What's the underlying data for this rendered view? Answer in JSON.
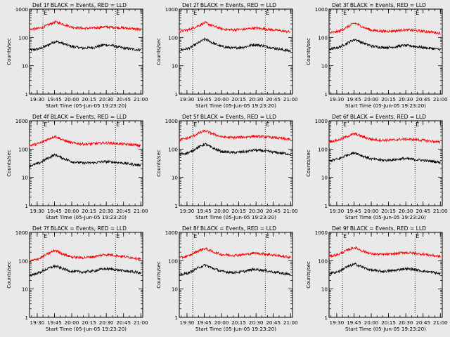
{
  "figure": {
    "background_color": "#e9e9e9",
    "axis_color": "#000000"
  },
  "chart_data": [
    {
      "type": "line",
      "title": "Det 1f BLACK = Events, RED = LLD",
      "xlabel": "Start Time (05-Jun-05 19:23:20)",
      "ylabel": "Counts/sec",
      "yscale": "log",
      "ylim": [
        1,
        1000
      ],
      "yticks": [
        "1",
        "10",
        "100",
        "1000"
      ],
      "xlim": [
        "19:23:20",
        "21:01:40"
      ],
      "xticks": [
        "19:30",
        "19:45",
        "20:00",
        "20:15",
        "20:30",
        "20:45",
        "21:00"
      ],
      "vlines": [
        "19:35",
        "20:38"
      ],
      "vline_marks": [
        "E",
        "E"
      ],
      "series": [
        {
          "name": "Events",
          "color": "#000000",
          "x": [
            "19:23",
            "19:32",
            "19:38",
            "19:44",
            "19:46",
            "19:52",
            "20:00",
            "20:10",
            "20:20",
            "20:28",
            "20:35",
            "20:45",
            "20:55",
            "21:00"
          ],
          "values": [
            35,
            40,
            50,
            68,
            72,
            62,
            48,
            42,
            45,
            55,
            52,
            42,
            38,
            36
          ]
        },
        {
          "name": "LLD",
          "color": "#ff0000",
          "x": [
            "19:23",
            "19:32",
            "19:38",
            "19:44",
            "19:46",
            "19:52",
            "20:00",
            "20:10",
            "20:20",
            "20:28",
            "20:35",
            "20:45",
            "20:55",
            "21:00"
          ],
          "values": [
            190,
            210,
            260,
            330,
            350,
            300,
            230,
            210,
            215,
            235,
            230,
            215,
            200,
            185
          ]
        }
      ]
    },
    {
      "type": "line",
      "title": "Det 2f BLACK = Events, RED = LLD",
      "xlabel": "Start Time (05-Jun-05 19:23:20)",
      "ylabel": "Counts/sec",
      "yscale": "log",
      "ylim": [
        1,
        1000
      ],
      "yticks": [
        "1",
        "10",
        "100",
        "1000"
      ],
      "xlim": [
        "19:23:20",
        "21:01:40"
      ],
      "xticks": [
        "19:30",
        "19:45",
        "20:00",
        "20:15",
        "20:30",
        "20:45",
        "21:00"
      ],
      "vlines": [
        "19:35",
        "20:38"
      ],
      "vline_marks": [
        "E",
        "E"
      ],
      "series": [
        {
          "name": "Events",
          "color": "#000000",
          "x": [
            "19:23",
            "19:32",
            "19:38",
            "19:44",
            "19:46",
            "19:52",
            "20:00",
            "20:10",
            "20:20",
            "20:28",
            "20:35",
            "20:45",
            "20:55",
            "21:00"
          ],
          "values": [
            35,
            42,
            58,
            80,
            88,
            65,
            48,
            42,
            46,
            56,
            52,
            42,
            36,
            33
          ]
        },
        {
          "name": "LLD",
          "color": "#ff0000",
          "x": [
            "19:23",
            "19:32",
            "19:38",
            "19:44",
            "19:46",
            "19:52",
            "20:00",
            "20:10",
            "20:20",
            "20:28",
            "20:35",
            "20:45",
            "20:55",
            "21:00"
          ],
          "values": [
            160,
            190,
            240,
            310,
            330,
            260,
            200,
            185,
            195,
            215,
            205,
            185,
            165,
            155
          ]
        }
      ]
    },
    {
      "type": "line",
      "title": "Det 3f BLACK = Events, RED = LLD",
      "xlabel": "Start Time (05-Jun-05 19:23:20)",
      "ylabel": "Counts/sec",
      "yscale": "log",
      "ylim": [
        1,
        1000
      ],
      "yticks": [
        "1",
        "10",
        "100",
        "1000"
      ],
      "xlim": [
        "19:23:20",
        "21:01:40"
      ],
      "xticks": [
        "19:30",
        "19:45",
        "20:00",
        "20:15",
        "20:30",
        "20:45",
        "21:00"
      ],
      "vlines": [
        "19:35",
        "20:38"
      ],
      "vline_marks": [
        "E",
        "E"
      ],
      "series": [
        {
          "name": "Events",
          "color": "#000000",
          "x": [
            "19:23",
            "19:32",
            "19:38",
            "19:44",
            "19:46",
            "19:52",
            "20:00",
            "20:10",
            "20:20",
            "20:28",
            "20:35",
            "20:45",
            "20:55",
            "21:00"
          ],
          "values": [
            38,
            45,
            60,
            80,
            85,
            66,
            50,
            44,
            46,
            52,
            50,
            44,
            40,
            38
          ]
        },
        {
          "name": "LLD",
          "color": "#ff0000",
          "x": [
            "19:23",
            "19:32",
            "19:38",
            "19:44",
            "19:46",
            "19:52",
            "20:00",
            "20:10",
            "20:20",
            "20:28",
            "20:35",
            "20:45",
            "20:55",
            "21:00"
          ],
          "values": [
            140,
            165,
            220,
            300,
            320,
            240,
            180,
            165,
            170,
            185,
            180,
            165,
            150,
            140
          ]
        }
      ]
    },
    {
      "type": "line",
      "title": "Det 4f BLACK = Events, RED = LLD",
      "xlabel": "Start Time (05-Jun-05 19:23:20)",
      "ylabel": "Counts/sec",
      "yscale": "log",
      "ylim": [
        1,
        1000
      ],
      "yticks": [
        "1",
        "10",
        "100",
        "1000"
      ],
      "xlim": [
        "19:23:20",
        "21:01:40"
      ],
      "xticks": [
        "19:30",
        "19:45",
        "20:00",
        "20:15",
        "20:30",
        "20:45",
        "21:00"
      ],
      "vlines": [
        "19:35",
        "20:38"
      ],
      "vline_marks": [
        "E",
        "E"
      ],
      "series": [
        {
          "name": "Events",
          "color": "#000000",
          "x": [
            "19:23",
            "19:32",
            "19:38",
            "19:44",
            "19:46",
            "19:52",
            "20:00",
            "20:10",
            "20:20",
            "20:28",
            "20:35",
            "20:45",
            "20:55",
            "21:00"
          ],
          "values": [
            25,
            32,
            45,
            60,
            62,
            48,
            36,
            32,
            33,
            36,
            35,
            32,
            28,
            27
          ]
        },
        {
          "name": "LLD",
          "color": "#ff0000",
          "x": [
            "19:23",
            "19:32",
            "19:38",
            "19:44",
            "19:46",
            "19:52",
            "20:00",
            "20:10",
            "20:20",
            "20:28",
            "20:35",
            "20:45",
            "20:55",
            "21:00"
          ],
          "values": [
            130,
            160,
            210,
            270,
            280,
            210,
            165,
            150,
            155,
            165,
            160,
            150,
            140,
            130
          ]
        }
      ]
    },
    {
      "type": "line",
      "title": "Det 5f BLACK = Events, RED = LLD",
      "xlabel": "Start Time (05-Jun-05 19:23:20)",
      "ylabel": "Counts/sec",
      "yscale": "log",
      "ylim": [
        1,
        1000
      ],
      "yticks": [
        "1",
        "10",
        "100",
        "1000"
      ],
      "xlim": [
        "19:23:20",
        "21:01:40"
      ],
      "xticks": [
        "19:30",
        "19:45",
        "20:00",
        "20:15",
        "20:30",
        "20:45",
        "21:00"
      ],
      "vlines": [
        "19:35",
        "20:38"
      ],
      "vline_marks": [
        "E",
        "E"
      ],
      "series": [
        {
          "name": "Events",
          "color": "#000000",
          "x": [
            "19:23",
            "19:32",
            "19:38",
            "19:44",
            "19:46",
            "19:52",
            "20:00",
            "20:10",
            "20:20",
            "20:28",
            "20:35",
            "20:45",
            "20:55",
            "21:00"
          ],
          "values": [
            65,
            75,
            105,
            140,
            150,
            110,
            82,
            75,
            80,
            92,
            88,
            78,
            70,
            65
          ]
        },
        {
          "name": "LLD",
          "color": "#ff0000",
          "x": [
            "19:23",
            "19:32",
            "19:38",
            "19:44",
            "19:46",
            "19:52",
            "20:00",
            "20:10",
            "20:20",
            "20:28",
            "20:35",
            "20:45",
            "20:55",
            "21:00"
          ],
          "values": [
            210,
            250,
            330,
            420,
            440,
            350,
            270,
            255,
            265,
            285,
            275,
            255,
            230,
            215
          ]
        }
      ]
    },
    {
      "type": "line",
      "title": "Det 6f BLACK = Events, RED = LLD",
      "xlabel": "Start Time (05-Jun-05 19:23:20)",
      "ylabel": "Counts/sec",
      "yscale": "log",
      "ylim": [
        1,
        1000
      ],
      "yticks": [
        "1",
        "10",
        "100",
        "1000"
      ],
      "xlim": [
        "19:23:20",
        "21:01:40"
      ],
      "xticks": [
        "19:30",
        "19:45",
        "20:00",
        "20:15",
        "20:30",
        "20:45",
        "21:00"
      ],
      "vlines": [
        "19:35",
        "20:38"
      ],
      "vline_marks": [
        "E",
        "E"
      ],
      "series": [
        {
          "name": "Events",
          "color": "#000000",
          "x": [
            "19:23",
            "19:32",
            "19:38",
            "19:44",
            "19:46",
            "19:52",
            "20:00",
            "20:10",
            "20:20",
            "20:28",
            "20:35",
            "20:45",
            "20:55",
            "21:00"
          ],
          "values": [
            38,
            45,
            60,
            72,
            75,
            58,
            45,
            40,
            42,
            46,
            44,
            40,
            36,
            34
          ]
        },
        {
          "name": "LLD",
          "color": "#ff0000",
          "x": [
            "19:23",
            "19:32",
            "19:38",
            "19:44",
            "19:46",
            "19:52",
            "20:00",
            "20:10",
            "20:20",
            "20:28",
            "20:35",
            "20:45",
            "20:55",
            "21:00"
          ],
          "values": [
            180,
            210,
            270,
            330,
            345,
            280,
            220,
            205,
            210,
            225,
            220,
            205,
            185,
            170
          ]
        }
      ]
    },
    {
      "type": "line",
      "title": "Det 7f BLACK = Events, RED = LLD",
      "xlabel": "Start Time (05-Jun-05 19:23:20)",
      "ylabel": "Counts/sec",
      "yscale": "log",
      "ylim": [
        1,
        1000
      ],
      "yticks": [
        "1",
        "10",
        "100",
        "1000"
      ],
      "xlim": [
        "19:23:20",
        "21:01:40"
      ],
      "xticks": [
        "19:30",
        "19:45",
        "20:00",
        "20:15",
        "20:30",
        "20:45",
        "21:00"
      ],
      "vlines": [
        "19:35",
        "20:38"
      ],
      "vline_marks": [
        "E",
        "E"
      ],
      "series": [
        {
          "name": "Events",
          "color": "#000000",
          "x": [
            "19:23",
            "19:32",
            "19:38",
            "19:44",
            "19:46",
            "19:52",
            "20:00",
            "20:10",
            "20:20",
            "20:28",
            "20:35",
            "20:45",
            "20:55",
            "21:00"
          ],
          "values": [
            30,
            38,
            50,
            62,
            65,
            52,
            42,
            40,
            44,
            52,
            50,
            44,
            40,
            36
          ]
        },
        {
          "name": "LLD",
          "color": "#ff0000",
          "x": [
            "19:23",
            "19:32",
            "19:38",
            "19:44",
            "19:46",
            "19:52",
            "20:00",
            "20:10",
            "20:20",
            "20:28",
            "20:35",
            "20:45",
            "20:55",
            "21:00"
          ],
          "values": [
            95,
            120,
            165,
            220,
            230,
            175,
            135,
            128,
            140,
            165,
            160,
            140,
            125,
            115
          ]
        }
      ]
    },
    {
      "type": "line",
      "title": "Det 8f BLACK = Events, RED = LLD",
      "xlabel": "Start Time (05-Jun-05 19:23:20)",
      "ylabel": "Counts/sec",
      "yscale": "log",
      "ylim": [
        1,
        1000
      ],
      "yticks": [
        "1",
        "10",
        "100",
        "1000"
      ],
      "xlim": [
        "19:23:20",
        "21:01:40"
      ],
      "xticks": [
        "19:30",
        "19:45",
        "20:00",
        "20:15",
        "20:30",
        "20:45",
        "21:00"
      ],
      "vlines": [
        "19:35",
        "20:38"
      ],
      "vline_marks": [
        "E",
        "E"
      ],
      "series": [
        {
          "name": "Events",
          "color": "#000000",
          "x": [
            "19:23",
            "19:32",
            "19:38",
            "19:44",
            "19:46",
            "19:52",
            "20:00",
            "20:10",
            "20:20",
            "20:28",
            "20:35",
            "20:45",
            "20:55",
            "21:00"
          ],
          "values": [
            30,
            38,
            52,
            66,
            70,
            55,
            42,
            38,
            42,
            50,
            47,
            40,
            35,
            32
          ]
        },
        {
          "name": "LLD",
          "color": "#ff0000",
          "x": [
            "19:23",
            "19:32",
            "19:38",
            "19:44",
            "19:46",
            "19:52",
            "20:00",
            "20:10",
            "20:20",
            "20:28",
            "20:35",
            "20:45",
            "20:55",
            "21:00"
          ],
          "values": [
            125,
            150,
            205,
            260,
            270,
            210,
            165,
            155,
            165,
            185,
            178,
            160,
            140,
            130
          ]
        }
      ]
    },
    {
      "type": "line",
      "title": "Det 9f BLACK = Events, RED = LLD",
      "xlabel": "Start Time (05-Jun-05 19:23:20)",
      "ylabel": "Counts/sec",
      "yscale": "log",
      "ylim": [
        1,
        1000
      ],
      "yticks": [
        "1",
        "10",
        "100",
        "1000"
      ],
      "xlim": [
        "19:23:20",
        "21:01:40"
      ],
      "xticks": [
        "19:30",
        "19:45",
        "20:00",
        "20:15",
        "20:30",
        "20:45",
        "21:00"
      ],
      "vlines": [
        "19:35",
        "20:38"
      ],
      "vline_marks": [
        "E",
        "E"
      ],
      "series": [
        {
          "name": "Events",
          "color": "#000000",
          "x": [
            "19:23",
            "19:32",
            "19:38",
            "19:44",
            "19:46",
            "19:52",
            "20:00",
            "20:10",
            "20:20",
            "20:28",
            "20:35",
            "20:45",
            "20:55",
            "21:00"
          ],
          "values": [
            35,
            42,
            58,
            72,
            76,
            60,
            46,
            42,
            45,
            52,
            50,
            43,
            38,
            34
          ]
        },
        {
          "name": "LLD",
          "color": "#ff0000",
          "x": [
            "19:23",
            "19:32",
            "19:38",
            "19:44",
            "19:46",
            "19:52",
            "20:00",
            "20:10",
            "20:20",
            "20:28",
            "20:35",
            "20:45",
            "20:55",
            "21:00"
          ],
          "values": [
            140,
            170,
            225,
            280,
            290,
            225,
            175,
            165,
            175,
            195,
            188,
            170,
            150,
            140
          ]
        }
      ]
    }
  ]
}
